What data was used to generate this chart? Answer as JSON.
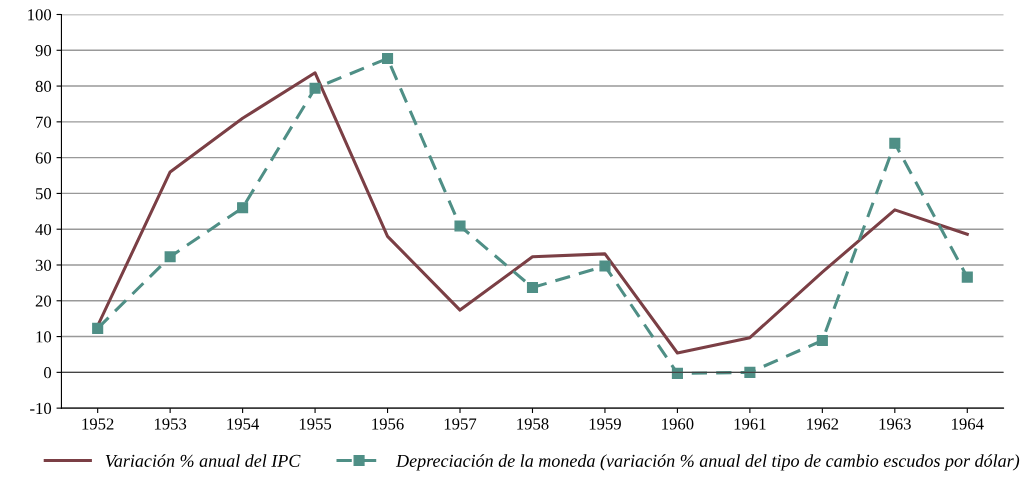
{
  "chart_data": {
    "type": "line",
    "categories": [
      "1952",
      "1953",
      "1954",
      "1955",
      "1956",
      "1957",
      "1958",
      "1959",
      "1960",
      "1961",
      "1962",
      "1963",
      "1964"
    ],
    "series": [
      {
        "name": "Variación % anual del IPC",
        "color": "#7b3f45",
        "line_style": "solid",
        "marker": "none",
        "values": [
          13,
          56,
          71,
          83.7,
          38,
          17.4,
          32.3,
          33.1,
          5.4,
          9.7,
          28,
          45.4,
          38.6
        ]
      },
      {
        "name": "Depreciación de la moneda (variación % anual del tipo de cambio escudos por dólar)",
        "color": "#4f8f86",
        "line_style": "dashed",
        "marker": "square",
        "values": [
          12.3,
          32.3,
          46,
          79.4,
          87.7,
          40.9,
          23.7,
          29.7,
          -0.3,
          0,
          8.9,
          64,
          26.6
        ]
      }
    ],
    "ylim": [
      -10,
      100
    ],
    "yticks": [
      -10,
      0,
      10,
      20,
      30,
      40,
      50,
      60,
      70,
      80,
      90,
      100
    ],
    "grid": "y",
    "legend": "bottom"
  }
}
